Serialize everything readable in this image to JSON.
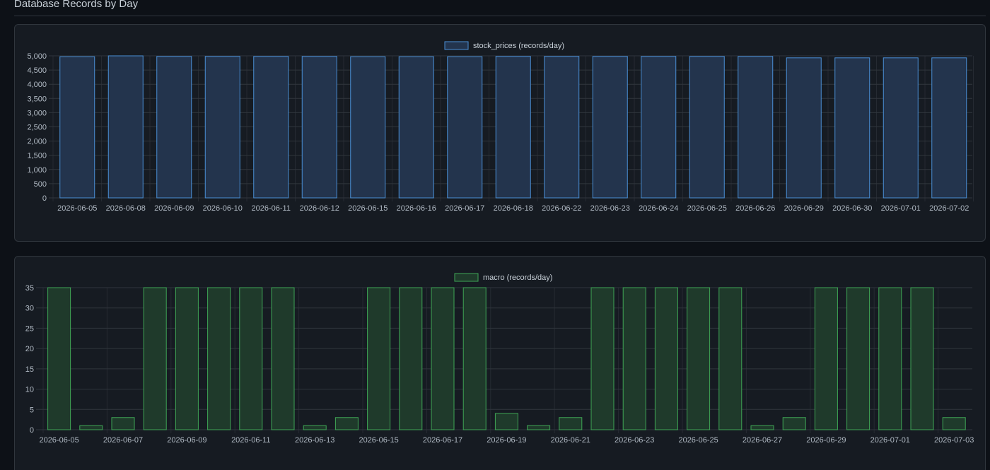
{
  "page": {
    "title": "Database Records by Day"
  },
  "theme": {
    "background": "#0d1117",
    "panel": "#161b22",
    "grid": "#30363d",
    "text": "#c9d1d9",
    "tick_text": "#b1bac4"
  },
  "chart_data": [
    {
      "type": "bar",
      "legend": "stock_prices (records/day)",
      "legend_position": "top-center",
      "grid": true,
      "color_fill": "#23344d",
      "color_stroke": "#4a8fd6",
      "categories": [
        "2026-06-05",
        "2026-06-08",
        "2026-06-09",
        "2026-06-10",
        "2026-06-11",
        "2026-06-12",
        "2026-06-15",
        "2026-06-16",
        "2026-06-17",
        "2026-06-18",
        "2026-06-22",
        "2026-06-23",
        "2026-06-24",
        "2026-06-25",
        "2026-06-26",
        "2026-06-29",
        "2026-06-30",
        "2026-07-01",
        "2026-07-02"
      ],
      "tick_labels": [
        "2026-06-05",
        "2026-06-08",
        "2026-06-09",
        "2026-06-10",
        "2026-06-11",
        "2026-06-12",
        "2026-06-15",
        "2026-06-16",
        "2026-06-17",
        "2026-06-18",
        "2026-06-22",
        "2026-06-23",
        "2026-06-24",
        "2026-06-25",
        "2026-06-26",
        "2026-06-29",
        "2026-06-30",
        "2026-07-01",
        "2026-07-02"
      ],
      "values": [
        4970,
        5000,
        4980,
        4980,
        4980,
        4980,
        4970,
        4970,
        4970,
        4980,
        4980,
        4980,
        4980,
        4980,
        4980,
        4930,
        4930,
        4930,
        4930
      ],
      "ylim": [
        0,
        5000
      ],
      "yticks": [
        "0",
        "500",
        "1,000",
        "1,500",
        "2,000",
        "2,500",
        "3,000",
        "3,500",
        "4,000",
        "4,500",
        "5,000"
      ],
      "xlabel": "",
      "ylabel": ""
    },
    {
      "type": "bar",
      "legend": "macro (records/day)",
      "legend_position": "top-center",
      "grid": true,
      "color_fill": "#1f3a2b",
      "color_stroke": "#3fa655",
      "categories": [
        "2026-06-05",
        "2026-06-06",
        "2026-06-07",
        "2026-06-08",
        "2026-06-09",
        "2026-06-10",
        "2026-06-11",
        "2026-06-12",
        "2026-06-13",
        "2026-06-14",
        "2026-06-15",
        "2026-06-16",
        "2026-06-17",
        "2026-06-18",
        "2026-06-19",
        "2026-06-20",
        "2026-06-21",
        "2026-06-22",
        "2026-06-23",
        "2026-06-24",
        "2026-06-25",
        "2026-06-26",
        "2026-06-27",
        "2026-06-28",
        "2026-06-29",
        "2026-06-30",
        "2026-07-01",
        "2026-07-02",
        "2026-07-03"
      ],
      "tick_labels": [
        "2026-06-05",
        "2026-06-07",
        "2026-06-09",
        "2026-06-11",
        "2026-06-13",
        "2026-06-15",
        "2026-06-17",
        "2026-06-19",
        "2026-06-21",
        "2026-06-23",
        "2026-06-25",
        "2026-06-27",
        "2026-06-29",
        "2026-07-01",
        "2026-07-03"
      ],
      "values": [
        35,
        1,
        3,
        35,
        35,
        35,
        35,
        35,
        1,
        3,
        35,
        35,
        35,
        35,
        4,
        1,
        3,
        35,
        35,
        35,
        35,
        35,
        1,
        3,
        35,
        35,
        35,
        35,
        3
      ],
      "ylim": [
        0,
        35
      ],
      "yticks": [
        "0",
        "5",
        "10",
        "15",
        "20",
        "25",
        "30",
        "35"
      ],
      "xlabel": "",
      "ylabel": ""
    }
  ]
}
